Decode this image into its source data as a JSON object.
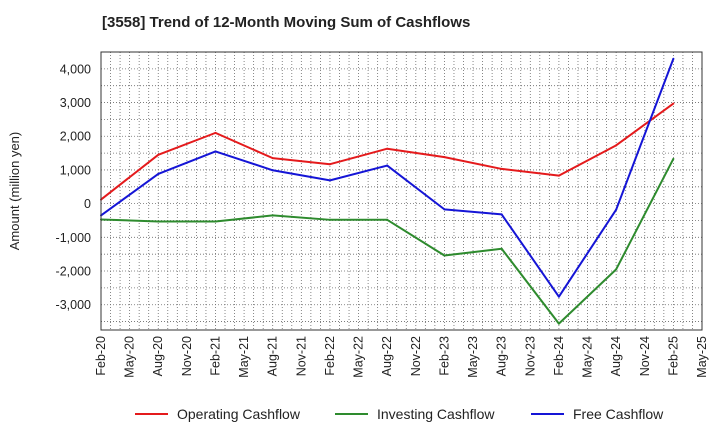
{
  "chart_data": {
    "type": "line",
    "title": "[3558]  Trend of 12-Month Moving Sum of Cashflows",
    "ylabel": "Amount (million yen)",
    "xlabel": "",
    "categories": [
      "Feb-20",
      "May-20",
      "Aug-20",
      "Nov-20",
      "Feb-21",
      "May-21",
      "Aug-21",
      "Nov-21",
      "Feb-22",
      "May-22",
      "Aug-22",
      "Nov-22",
      "Feb-23",
      "May-23",
      "Aug-23",
      "Nov-23",
      "Feb-24",
      "May-24",
      "Aug-24",
      "Nov-24",
      "Feb-25",
      "May-25"
    ],
    "y_ticks": [
      {
        "value": 4000,
        "label": "4,000"
      },
      {
        "value": 3000,
        "label": "3,000"
      },
      {
        "value": 2000,
        "label": "2,000"
      },
      {
        "value": 1000,
        "label": "1,000"
      },
      {
        "value": 0,
        "label": "0"
      },
      {
        "value": -1000,
        "label": "-1,000"
      },
      {
        "value": -2000,
        "label": "-2,000"
      },
      {
        "value": -3000,
        "label": "-3,000"
      }
    ],
    "ylim": [
      -3750,
      4500
    ],
    "grid": true,
    "legend_position": "bottom",
    "series": [
      {
        "name": "Operating Cashflow",
        "color": "#e41a1c",
        "x": [
          "Feb-20",
          "Aug-20",
          "Feb-21",
          "Aug-21",
          "Feb-22",
          "Aug-22",
          "Feb-23",
          "Aug-23",
          "Feb-24",
          "Aug-24",
          "Feb-25"
        ],
        "values": [
          120,
          1450,
          2100,
          1350,
          1170,
          1630,
          1380,
          1030,
          830,
          1730,
          2970
        ]
      },
      {
        "name": "Investing Cashflow",
        "color": "#2e8b2e",
        "x": [
          "Feb-20",
          "Aug-20",
          "Feb-21",
          "Aug-21",
          "Feb-22",
          "Aug-22",
          "Feb-23",
          "Aug-23",
          "Feb-24",
          "Aug-24",
          "Feb-25"
        ],
        "values": [
          -470,
          -530,
          -530,
          -350,
          -480,
          -480,
          -1540,
          -1340,
          -3560,
          -1950,
          1330
        ]
      },
      {
        "name": "Free Cashflow",
        "color": "#1515d6",
        "x": [
          "Feb-20",
          "Aug-20",
          "Feb-21",
          "Aug-21",
          "Feb-22",
          "Aug-22",
          "Feb-23",
          "Aug-23",
          "Feb-24",
          "Aug-24",
          "Feb-25"
        ],
        "values": [
          -350,
          880,
          1550,
          990,
          690,
          1130,
          -170,
          -320,
          -2760,
          -180,
          4300
        ]
      }
    ]
  }
}
